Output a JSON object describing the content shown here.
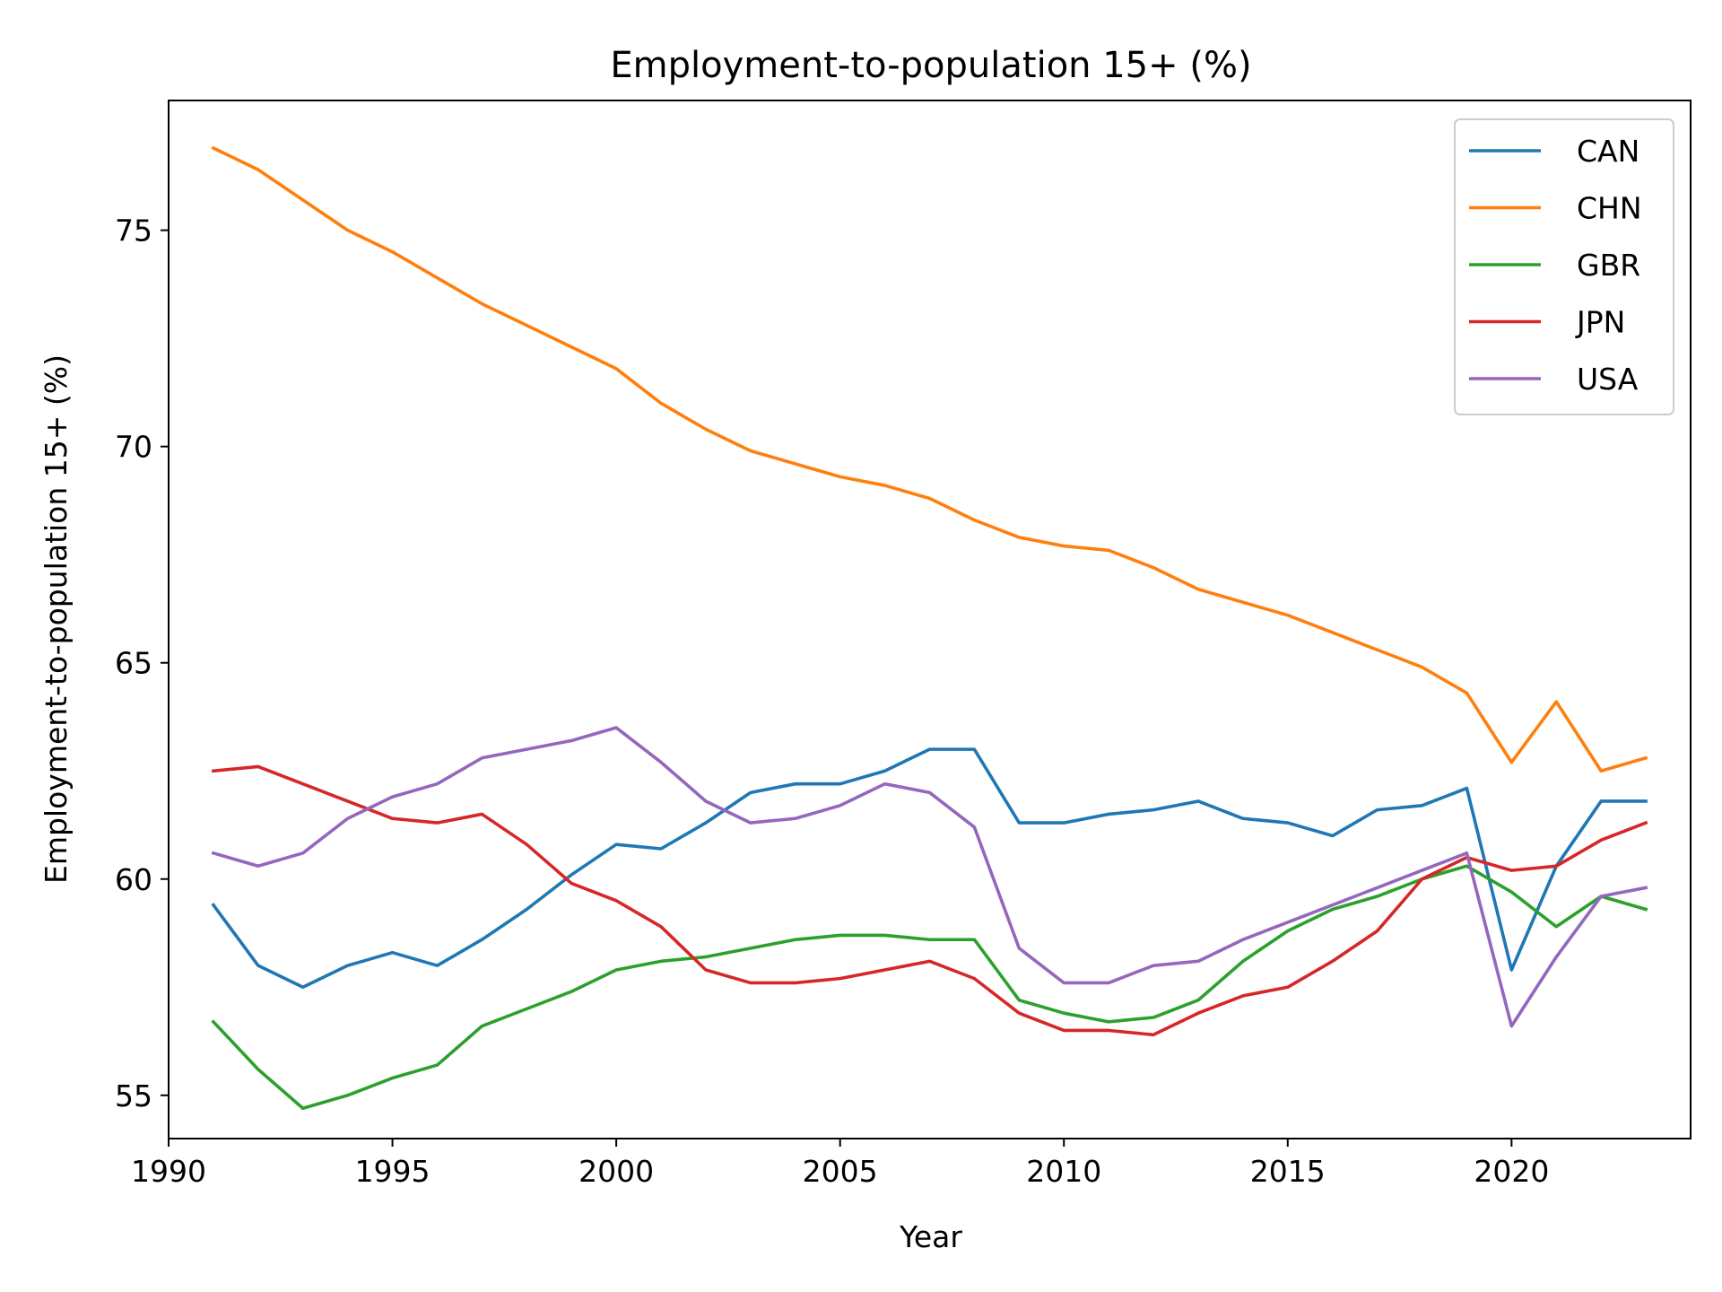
{
  "chart_data": {
    "type": "line",
    "title": "Employment-to-population 15+ (%)",
    "xlabel": "Year",
    "ylabel": "Employment-to-population 15+ (%)",
    "xlim": [
      1990,
      2024
    ],
    "ylim": [
      54,
      78
    ],
    "xticks": [
      1990,
      1995,
      2000,
      2005,
      2010,
      2015,
      2020
    ],
    "yticks": [
      55,
      60,
      65,
      70,
      75
    ],
    "grid": false,
    "legend_position": "top-right",
    "x": [
      1991,
      1992,
      1993,
      1994,
      1995,
      1996,
      1997,
      1998,
      1999,
      2000,
      2001,
      2002,
      2003,
      2004,
      2005,
      2006,
      2007,
      2008,
      2009,
      2010,
      2011,
      2012,
      2013,
      2014,
      2015,
      2016,
      2017,
      2018,
      2019,
      2020,
      2021,
      2022,
      2023
    ],
    "series": [
      {
        "name": "CAN",
        "color": "#1f77b4",
        "values": [
          59.4,
          58.0,
          57.5,
          58.0,
          58.3,
          58.0,
          58.6,
          59.3,
          60.1,
          60.8,
          60.7,
          61.3,
          62.0,
          62.2,
          62.2,
          62.5,
          63.0,
          63.0,
          61.3,
          61.3,
          61.5,
          61.6,
          61.8,
          61.4,
          61.3,
          61.0,
          61.6,
          61.7,
          62.1,
          57.9,
          60.3,
          61.8,
          61.8
        ]
      },
      {
        "name": "CHN",
        "color": "#ff7f0e",
        "values": [
          76.9,
          76.4,
          75.7,
          75.0,
          74.5,
          73.9,
          73.3,
          72.8,
          72.3,
          71.8,
          71.0,
          70.4,
          69.9,
          69.6,
          69.3,
          69.1,
          68.8,
          68.3,
          67.9,
          67.7,
          67.6,
          67.2,
          66.7,
          66.4,
          66.1,
          65.7,
          65.3,
          64.9,
          64.3,
          62.7,
          64.1,
          62.5,
          62.8
        ]
      },
      {
        "name": "GBR",
        "color": "#2ca02c",
        "values": [
          56.7,
          55.6,
          54.7,
          55.0,
          55.4,
          55.7,
          56.6,
          57.0,
          57.4,
          57.9,
          58.1,
          58.2,
          58.4,
          58.6,
          58.7,
          58.7,
          58.6,
          58.6,
          57.2,
          56.9,
          56.7,
          56.8,
          57.2,
          58.1,
          58.8,
          59.3,
          59.6,
          60.0,
          60.3,
          59.7,
          58.9,
          59.6,
          59.3
        ]
      },
      {
        "name": "JPN",
        "color": "#d62728",
        "values": [
          62.5,
          62.6,
          62.2,
          61.8,
          61.4,
          61.3,
          61.5,
          60.8,
          59.9,
          59.5,
          58.9,
          57.9,
          57.6,
          57.6,
          57.7,
          57.9,
          58.1,
          57.7,
          56.9,
          56.5,
          56.5,
          56.4,
          56.9,
          57.3,
          57.5,
          58.1,
          58.8,
          60.0,
          60.5,
          60.2,
          60.3,
          60.9,
          61.3
        ]
      },
      {
        "name": "USA",
        "color": "#9467bd",
        "values": [
          60.6,
          60.3,
          60.6,
          61.4,
          61.9,
          62.2,
          62.8,
          63.0,
          63.2,
          63.5,
          62.7,
          61.8,
          61.3,
          61.4,
          61.7,
          62.2,
          62.0,
          61.2,
          58.4,
          57.6,
          57.6,
          58.0,
          58.1,
          58.6,
          59.0,
          59.4,
          59.8,
          60.2,
          60.6,
          56.6,
          58.2,
          59.6,
          59.8
        ]
      }
    ]
  }
}
